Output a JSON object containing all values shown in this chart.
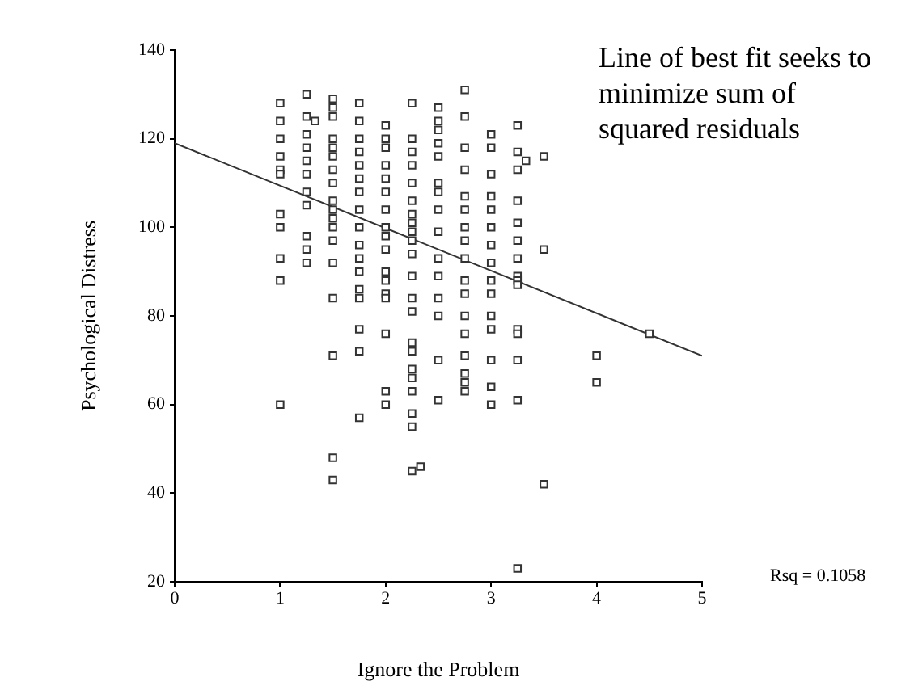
{
  "chart_data": {
    "type": "scatter",
    "xlabel": "Ignore the Problem",
    "ylabel": "Psychological Distress",
    "xlim": [
      0,
      5
    ],
    "xticks": [
      0,
      1,
      2,
      3,
      4,
      5
    ],
    "ylim": [
      20,
      140
    ],
    "yticks": [
      20,
      40,
      60,
      80,
      100,
      120,
      140
    ],
    "grid": false,
    "legend": false,
    "marker": "square",
    "series": [
      {
        "color": "#333333",
        "x": [
          1,
          1,
          1,
          1,
          1,
          1,
          1,
          1,
          1,
          1,
          1,
          1.25,
          1.25,
          1.25,
          1.25,
          1.25,
          1.25,
          1.25,
          1.25,
          1.25,
          1.25,
          1.25,
          1.33,
          1.5,
          1.5,
          1.5,
          1.5,
          1.5,
          1.5,
          1.5,
          1.5,
          1.5,
          1.5,
          1.5,
          1.5,
          1.5,
          1.5,
          1.5,
          1.5,
          1.5,
          1.5,
          1.75,
          1.75,
          1.75,
          1.75,
          1.75,
          1.75,
          1.75,
          1.75,
          1.75,
          1.75,
          1.75,
          1.75,
          1.75,
          1.75,
          1.75,
          1.75,
          1.75,
          2,
          2,
          2,
          2,
          2,
          2,
          2,
          2,
          2,
          2,
          2,
          2,
          2,
          2,
          2,
          2,
          2,
          2.25,
          2.25,
          2.25,
          2.25,
          2.25,
          2.25,
          2.25,
          2.25,
          2.25,
          2.25,
          2.25,
          2.25,
          2.25,
          2.25,
          2.25,
          2.25,
          2.25,
          2.25,
          2.25,
          2.25,
          2.25,
          2.25,
          2.33,
          2.5,
          2.5,
          2.5,
          2.5,
          2.5,
          2.5,
          2.5,
          2.5,
          2.5,
          2.5,
          2.5,
          2.5,
          2.5,
          2.5,
          2.5,
          2.75,
          2.75,
          2.75,
          2.75,
          2.75,
          2.75,
          2.75,
          2.75,
          2.75,
          2.75,
          2.75,
          2.75,
          2.75,
          2.75,
          2.75,
          2.75,
          2.75,
          3,
          3,
          3,
          3,
          3,
          3,
          3,
          3,
          3,
          3,
          3,
          3,
          3,
          3,
          3,
          3.25,
          3.25,
          3.25,
          3.25,
          3.25,
          3.25,
          3.25,
          3.25,
          3.25,
          3.25,
          3.25,
          3.25,
          3.25,
          3.25,
          3.25,
          3.33,
          3.5,
          3.5,
          3.5,
          4,
          4,
          4.5
        ],
        "values": [
          128,
          124,
          120,
          116,
          113,
          112,
          103,
          100,
          93,
          88,
          60,
          130,
          125,
          121,
          118,
          115,
          112,
          108,
          105,
          98,
          95,
          92,
          124,
          129,
          127,
          125,
          120,
          118,
          116,
          113,
          110,
          106,
          104,
          102,
          100,
          97,
          92,
          84,
          71,
          48,
          43,
          128,
          124,
          120,
          117,
          114,
          111,
          108,
          104,
          100,
          96,
          93,
          90,
          86,
          84,
          77,
          72,
          57,
          123,
          120,
          118,
          114,
          111,
          108,
          104,
          100,
          98,
          95,
          90,
          88,
          85,
          84,
          76,
          63,
          60,
          128,
          120,
          117,
          114,
          110,
          106,
          103,
          101,
          99,
          97,
          94,
          89,
          84,
          81,
          74,
          72,
          68,
          66,
          63,
          58,
          55,
          45,
          46,
          127,
          124,
          122,
          119,
          116,
          110,
          108,
          104,
          99,
          93,
          89,
          84,
          80,
          70,
          61,
          131,
          125,
          118,
          113,
          107,
          104,
          100,
          97,
          93,
          88,
          85,
          80,
          76,
          71,
          67,
          65,
          63,
          121,
          118,
          112,
          107,
          104,
          100,
          96,
          92,
          88,
          85,
          80,
          77,
          70,
          64,
          60,
          123,
          117,
          113,
          106,
          101,
          97,
          93,
          89,
          88,
          87,
          77,
          76,
          70,
          61,
          23,
          115,
          116,
          95,
          42,
          71,
          65,
          76
        ]
      },
      {
        "type": "line",
        "color": "#333333",
        "marker": "none",
        "line_style": "solid",
        "x": [
          0,
          5
        ],
        "values": [
          119,
          71
        ]
      }
    ],
    "annotations": [
      "Line of best fit seeks to minimize sum of squared residuals",
      "Rsq = 0.1058"
    ]
  }
}
